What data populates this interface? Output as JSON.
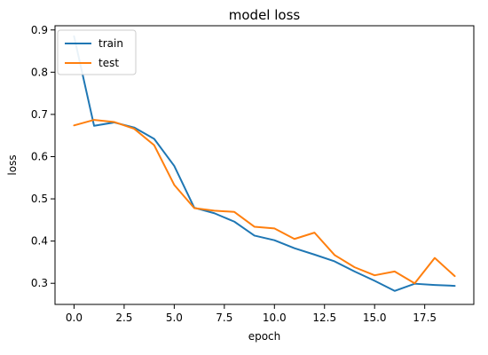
{
  "chart_data": {
    "type": "line",
    "title": "model loss",
    "xlabel": "epoch",
    "ylabel": "loss",
    "xlim": [
      -0.95,
      19.95
    ],
    "ylim": [
      0.25,
      0.91
    ],
    "x_ticks": [
      0.0,
      2.5,
      5.0,
      7.5,
      10.0,
      12.5,
      15.0,
      17.5
    ],
    "x_tick_labels": [
      "0.0",
      "2.5",
      "5.0",
      "7.5",
      "10.0",
      "12.5",
      "15.0",
      "17.5"
    ],
    "y_ticks": [
      0.3,
      0.4,
      0.5,
      0.6,
      0.7,
      0.8,
      0.9
    ],
    "y_tick_labels": [
      "0.3",
      "0.4",
      "0.5",
      "0.6",
      "0.7",
      "0.8",
      "0.9"
    ],
    "grid": false,
    "legend_position": "upper-left",
    "x": [
      0,
      1,
      2,
      3,
      4,
      5,
      6,
      7,
      8,
      9,
      10,
      11,
      12,
      13,
      14,
      15,
      16,
      17,
      18,
      19
    ],
    "series": [
      {
        "name": "train",
        "color": "#1f77b4",
        "values": [
          0.885,
          0.673,
          0.681,
          0.669,
          0.642,
          0.578,
          0.479,
          0.466,
          0.446,
          0.413,
          0.402,
          0.383,
          0.368,
          0.352,
          0.328,
          0.306,
          0.282,
          0.299,
          0.296,
          0.294
        ]
      },
      {
        "name": "test",
        "color": "#ff7f0e",
        "values": [
          0.674,
          0.687,
          0.682,
          0.666,
          0.627,
          0.533,
          0.478,
          0.472,
          0.469,
          0.434,
          0.43,
          0.405,
          0.42,
          0.367,
          0.338,
          0.319,
          0.328,
          0.3,
          0.36,
          0.317
        ]
      }
    ]
  }
}
